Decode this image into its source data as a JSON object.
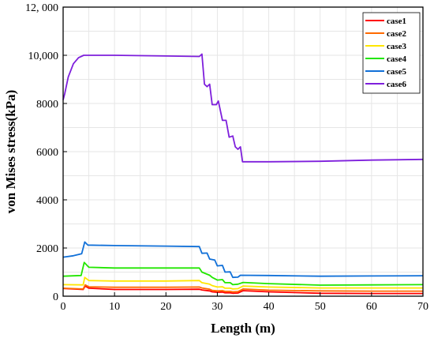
{
  "chart_data": {
    "type": "line",
    "title": "",
    "xlabel": "Length (m)",
    "ylabel": "von Mises stress(kPa)",
    "xlim": [
      0,
      70
    ],
    "ylim": [
      0,
      12000
    ],
    "xticks": [
      0,
      10,
      20,
      30,
      40,
      50,
      60,
      70
    ],
    "xtick_labels": [
      "0",
      "10",
      "20",
      "30",
      "40",
      "50",
      "60",
      "70"
    ],
    "yticks": [
      0,
      2000,
      4000,
      6000,
      8000,
      10000,
      12000
    ],
    "ytick_labels": [
      "0",
      "2000",
      "4000",
      "6000",
      "8000",
      "10,000",
      "12, 000"
    ],
    "grid": true,
    "legend_position": "top-right",
    "series": [
      {
        "name": "case1",
        "color": "#ff0000",
        "points": [
          [
            0,
            320
          ],
          [
            3.9,
            280
          ],
          [
            4.3,
            420
          ],
          [
            5,
            330
          ],
          [
            10,
            280
          ],
          [
            20,
            280
          ],
          [
            26.5,
            290
          ],
          [
            27,
            260
          ],
          [
            28.5,
            220
          ],
          [
            29,
            180
          ],
          [
            30,
            160
          ],
          [
            31,
            170
          ],
          [
            31.5,
            140
          ],
          [
            32.5,
            140
          ],
          [
            33,
            120
          ],
          [
            34,
            130
          ],
          [
            35,
            230
          ],
          [
            40,
            180
          ],
          [
            50,
            120
          ],
          [
            60,
            110
          ],
          [
            70,
            110
          ]
        ]
      },
      {
        "name": "case2",
        "color": "#ff6a00",
        "points": [
          [
            0,
            330
          ],
          [
            3.9,
            300
          ],
          [
            4.3,
            470
          ],
          [
            5,
            390
          ],
          [
            10,
            370
          ],
          [
            20,
            370
          ],
          [
            26.5,
            380
          ],
          [
            27,
            340
          ],
          [
            28.5,
            290
          ],
          [
            29,
            240
          ],
          [
            30,
            220
          ],
          [
            31,
            230
          ],
          [
            31.5,
            200
          ],
          [
            32.5,
            200
          ],
          [
            33,
            180
          ],
          [
            34,
            190
          ],
          [
            35,
            300
          ],
          [
            40,
            250
          ],
          [
            50,
            220
          ],
          [
            60,
            210
          ],
          [
            70,
            210
          ]
        ]
      },
      {
        "name": "case3",
        "color": "#ffe600",
        "points": [
          [
            0,
            480
          ],
          [
            3.9,
            470
          ],
          [
            4.2,
            780
          ],
          [
            5,
            650
          ],
          [
            10,
            630
          ],
          [
            20,
            630
          ],
          [
            26.5,
            650
          ],
          [
            27,
            560
          ],
          [
            28.5,
            500
          ],
          [
            29,
            440
          ],
          [
            30,
            380
          ],
          [
            31,
            390
          ],
          [
            31.5,
            330
          ],
          [
            32.5,
            330
          ],
          [
            33,
            300
          ],
          [
            34,
            310
          ],
          [
            35,
            420
          ],
          [
            40,
            380
          ],
          [
            50,
            340
          ],
          [
            60,
            340
          ],
          [
            70,
            340
          ]
        ]
      },
      {
        "name": "case4",
        "color": "#22e600",
        "points": [
          [
            0,
            830
          ],
          [
            3.5,
            860
          ],
          [
            4.1,
            1400
          ],
          [
            5,
            1200
          ],
          [
            10,
            1170
          ],
          [
            20,
            1170
          ],
          [
            26.5,
            1170
          ],
          [
            27,
            1000
          ],
          [
            28.5,
            870
          ],
          [
            29,
            780
          ],
          [
            30,
            670
          ],
          [
            31,
            690
          ],
          [
            31.5,
            560
          ],
          [
            32.5,
            560
          ],
          [
            33,
            480
          ],
          [
            34,
            500
          ],
          [
            35,
            570
          ],
          [
            40,
            520
          ],
          [
            50,
            460
          ],
          [
            60,
            470
          ],
          [
            70,
            480
          ]
        ]
      },
      {
        "name": "case5",
        "color": "#1170d8",
        "points": [
          [
            0,
            1620
          ],
          [
            2,
            1680
          ],
          [
            3.6,
            1760
          ],
          [
            4.2,
            2250
          ],
          [
            4.8,
            2120
          ],
          [
            10,
            2100
          ],
          [
            20,
            2080
          ],
          [
            26.5,
            2060
          ],
          [
            27,
            1780
          ],
          [
            28,
            1790
          ],
          [
            28.5,
            1540
          ],
          [
            29.5,
            1500
          ],
          [
            30,
            1260
          ],
          [
            31,
            1280
          ],
          [
            31.5,
            1000
          ],
          [
            32.5,
            1010
          ],
          [
            33,
            780
          ],
          [
            34,
            790
          ],
          [
            34.5,
            870
          ],
          [
            40,
            860
          ],
          [
            50,
            830
          ],
          [
            60,
            840
          ],
          [
            70,
            850
          ]
        ]
      },
      {
        "name": "case6",
        "color": "#7e1fdc",
        "points": [
          [
            0,
            8150
          ],
          [
            0.3,
            8400
          ],
          [
            1,
            9100
          ],
          [
            2,
            9650
          ],
          [
            3,
            9900
          ],
          [
            4,
            10000
          ],
          [
            10,
            10000
          ],
          [
            20,
            9970
          ],
          [
            26.5,
            9950
          ],
          [
            27,
            10050
          ],
          [
            27.5,
            8800
          ],
          [
            28,
            8700
          ],
          [
            28.5,
            8800
          ],
          [
            29,
            7950
          ],
          [
            29.8,
            7950
          ],
          [
            30.2,
            8100
          ],
          [
            31,
            7300
          ],
          [
            31.7,
            7300
          ],
          [
            32.3,
            6600
          ],
          [
            33,
            6650
          ],
          [
            33.5,
            6200
          ],
          [
            34,
            6100
          ],
          [
            34.5,
            6200
          ],
          [
            34.9,
            5580
          ],
          [
            40,
            5580
          ],
          [
            50,
            5600
          ],
          [
            60,
            5650
          ],
          [
            70,
            5680
          ]
        ]
      }
    ]
  }
}
